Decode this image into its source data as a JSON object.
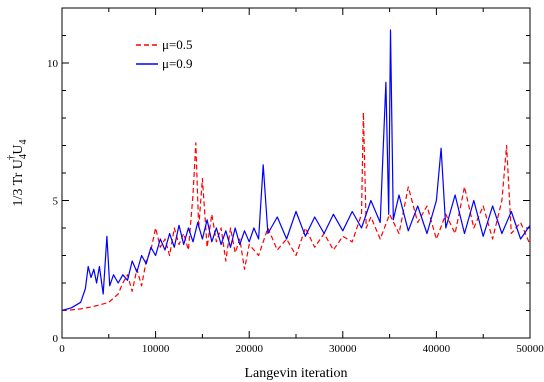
{
  "chart_data": {
    "type": "line",
    "title": "",
    "xlabel": "Langevin iteration",
    "ylabel": {
      "prefix": "1/3 Tr U",
      "sub1": "4",
      "sup": "†",
      "mid": "U",
      "sub2": "4"
    },
    "xlim": [
      0,
      50000
    ],
    "ylim": [
      0,
      12
    ],
    "xticks": [
      0,
      10000,
      20000,
      30000,
      40000,
      50000
    ],
    "xtick_labels": [
      "0",
      "10000",
      "20000",
      "30000",
      "40000",
      "50000"
    ],
    "yticks": [
      0,
      5,
      10
    ],
    "ytick_labels": [
      "0",
      "5",
      "10"
    ],
    "grid": false,
    "legend_position": "top-left",
    "series": [
      {
        "name": "μ=0.5",
        "color": "#ff0000",
        "style": "dashed",
        "points": [
          [
            0,
            1.0
          ],
          [
            1000,
            1.02
          ],
          [
            2000,
            1.06
          ],
          [
            3000,
            1.12
          ],
          [
            4000,
            1.2
          ],
          [
            5000,
            1.3
          ],
          [
            5500,
            1.45
          ],
          [
            6000,
            1.6
          ],
          [
            6500,
            2.0
          ],
          [
            7000,
            2.3
          ],
          [
            7500,
            1.7
          ],
          [
            8000,
            2.5
          ],
          [
            8500,
            1.9
          ],
          [
            9000,
            2.8
          ],
          [
            9500,
            3.2
          ],
          [
            10000,
            4.0
          ],
          [
            10500,
            3.3
          ],
          [
            11000,
            3.6
          ],
          [
            11500,
            3.0
          ],
          [
            12000,
            4.0
          ],
          [
            12500,
            3.4
          ],
          [
            13000,
            3.8
          ],
          [
            13500,
            3.2
          ],
          [
            14000,
            5.2
          ],
          [
            14300,
            7.1
          ],
          [
            14600,
            4.0
          ],
          [
            15000,
            5.8
          ],
          [
            15500,
            3.3
          ],
          [
            16000,
            4.5
          ],
          [
            16500,
            3.5
          ],
          [
            17000,
            4.0
          ],
          [
            17500,
            2.8
          ],
          [
            18000,
            4.0
          ],
          [
            18500,
            3.1
          ],
          [
            19000,
            3.6
          ],
          [
            19500,
            2.5
          ],
          [
            20000,
            3.4
          ],
          [
            21000,
            3.0
          ],
          [
            22000,
            4.0
          ],
          [
            23000,
            3.2
          ],
          [
            24000,
            3.6
          ],
          [
            25000,
            3.0
          ],
          [
            26000,
            4.0
          ],
          [
            27000,
            3.3
          ],
          [
            28000,
            3.8
          ],
          [
            29000,
            3.2
          ],
          [
            30000,
            3.7
          ],
          [
            31000,
            3.5
          ],
          [
            32000,
            4.5
          ],
          [
            32200,
            8.2
          ],
          [
            32500,
            4.0
          ],
          [
            33000,
            4.4
          ],
          [
            34000,
            3.6
          ],
          [
            35000,
            4.5
          ],
          [
            36000,
            3.8
          ],
          [
            37000,
            5.5
          ],
          [
            38000,
            4.2
          ],
          [
            39000,
            4.8
          ],
          [
            40000,
            3.6
          ],
          [
            41000,
            4.5
          ],
          [
            42000,
            3.8
          ],
          [
            43000,
            5.5
          ],
          [
            44000,
            4.0
          ],
          [
            45000,
            4.8
          ],
          [
            46000,
            3.6
          ],
          [
            47000,
            5.0
          ],
          [
            47500,
            7.0
          ],
          [
            48000,
            3.8
          ],
          [
            49000,
            4.2
          ],
          [
            50000,
            3.4
          ]
        ]
      },
      {
        "name": "μ=0.9",
        "color": "#0000ff",
        "style": "solid",
        "points": [
          [
            0,
            1.0
          ],
          [
            1000,
            1.1
          ],
          [
            2000,
            1.3
          ],
          [
            2500,
            1.8
          ],
          [
            2800,
            2.6
          ],
          [
            3100,
            2.2
          ],
          [
            3400,
            2.5
          ],
          [
            3700,
            2.0
          ],
          [
            4000,
            2.6
          ],
          [
            4400,
            1.6
          ],
          [
            4800,
            3.7
          ],
          [
            5100,
            1.9
          ],
          [
            5500,
            2.3
          ],
          [
            6000,
            2.0
          ],
          [
            6500,
            2.3
          ],
          [
            7000,
            2.1
          ],
          [
            7500,
            2.8
          ],
          [
            8000,
            2.4
          ],
          [
            8500,
            3.0
          ],
          [
            9000,
            2.7
          ],
          [
            9500,
            3.3
          ],
          [
            10000,
            3.0
          ],
          [
            10500,
            3.6
          ],
          [
            11000,
            3.2
          ],
          [
            11500,
            3.8
          ],
          [
            12000,
            3.3
          ],
          [
            12500,
            4.1
          ],
          [
            13000,
            3.4
          ],
          [
            13500,
            4.0
          ],
          [
            14000,
            3.5
          ],
          [
            14500,
            4.2
          ],
          [
            15000,
            3.6
          ],
          [
            15500,
            4.3
          ],
          [
            16000,
            3.5
          ],
          [
            16500,
            4.0
          ],
          [
            17000,
            3.4
          ],
          [
            17500,
            3.9
          ],
          [
            18000,
            3.3
          ],
          [
            18500,
            4.0
          ],
          [
            19000,
            3.4
          ],
          [
            19500,
            3.9
          ],
          [
            20000,
            3.5
          ],
          [
            20500,
            4.0
          ],
          [
            21000,
            3.6
          ],
          [
            21500,
            6.3
          ],
          [
            22000,
            3.8
          ],
          [
            23000,
            4.4
          ],
          [
            24000,
            3.6
          ],
          [
            25000,
            4.6
          ],
          [
            26000,
            3.7
          ],
          [
            27000,
            4.4
          ],
          [
            28000,
            3.8
          ],
          [
            29000,
            4.5
          ],
          [
            30000,
            3.9
          ],
          [
            31000,
            4.6
          ],
          [
            32000,
            4.0
          ],
          [
            33000,
            5.0
          ],
          [
            34000,
            4.2
          ],
          [
            34600,
            9.3
          ],
          [
            34900,
            4.5
          ],
          [
            35100,
            11.2
          ],
          [
            35400,
            4.3
          ],
          [
            36000,
            5.2
          ],
          [
            37000,
            3.9
          ],
          [
            38000,
            4.8
          ],
          [
            39000,
            3.8
          ],
          [
            40000,
            5.0
          ],
          [
            40500,
            6.9
          ],
          [
            41000,
            4.0
          ],
          [
            42000,
            5.2
          ],
          [
            43000,
            3.8
          ],
          [
            44000,
            5.0
          ],
          [
            45000,
            3.7
          ],
          [
            46000,
            4.8
          ],
          [
            47000,
            3.8
          ],
          [
            48000,
            4.6
          ],
          [
            49000,
            3.6
          ],
          [
            50000,
            4.1
          ]
        ]
      }
    ]
  }
}
